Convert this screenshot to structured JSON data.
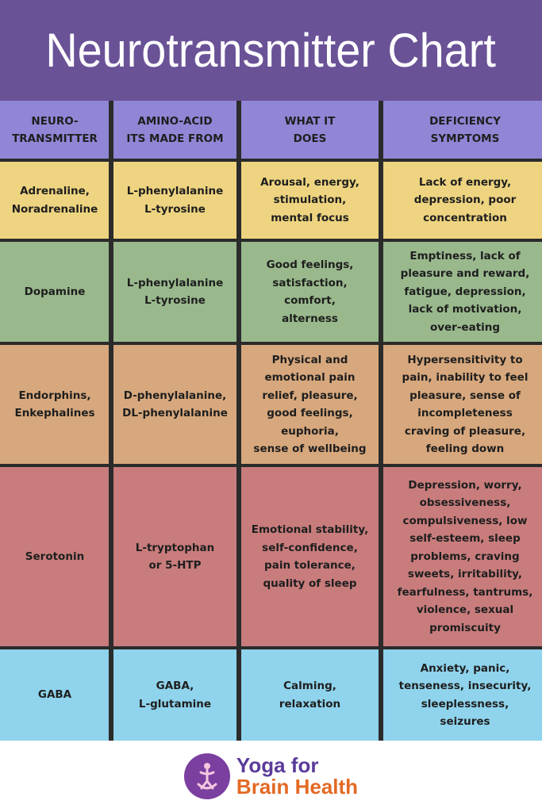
{
  "title": "Neurotransmitter Chart",
  "headers": [
    "NEURO-\nTRANSMITTER",
    "AMINO-ACID\nITS MADE FROM",
    "WHAT IT\nDOES",
    "DEFICIENCY\nSYMPTOMS"
  ],
  "rows": [
    {
      "neurotransmitter": "Adrenaline,\nNoradrenaline",
      "amino_acid": "L-phenylalanine\nL-tyrosine",
      "what_it_does": "Arousal, energy,\nstimulation,\nmental focus",
      "deficiency": "Lack of energy,\ndepression, poor\nconcentration"
    },
    {
      "neurotransmitter": "Dopamine",
      "amino_acid": "L-phenylalanine\nL-tyrosine",
      "what_it_does": "Good feelings,\nsatisfaction,\ncomfort,\nalterness",
      "deficiency": "Emptiness, lack of\npleasure and reward,\nfatigue, depression,\nlack of motivation,\nover-eating"
    },
    {
      "neurotransmitter": "Endorphins,\nEnkephalines",
      "amino_acid": "D-phenylalanine,\nDL-phenylalanine",
      "what_it_does": "Physical and\nemotional pain\nrelief, pleasure,\ngood feelings,\neuphoria,\nsense of wellbeing",
      "deficiency": "Hypersensitivity to\npain, inability to feel\npleasure, sense of\nincompleteness\ncraving of pleasure,\nfeeling down"
    },
    {
      "neurotransmitter": "Serotonin",
      "amino_acid": "L-tryptophan\nor 5-HTP",
      "what_it_does": "Emotional stability,\nself-confidence,\npain tolerance,\nquality of sleep",
      "deficiency": "Depression, worry,\nobsessiveness,\ncompulsiveness, low\nself-esteem, sleep\nproblems, craving\nsweets, irritability,\nfearfulness, tantrums,\nviolence, sexual\npromiscuity"
    },
    {
      "neurotransmitter": "GABA",
      "amino_acid": "GABA,\nL-glutamine",
      "what_it_does": "Calming,\nrelaxation",
      "deficiency": "Anxiety, panic,\ntenseness, insecurity,\nsleeplessness,\nseizures"
    }
  ],
  "colors": {
    "title_bg": "#6a5297",
    "header_bg": "#8f86d6",
    "rows": [
      "#eed480",
      "#99b98d",
      "#d7a87d",
      "#c87c7c",
      "#8fd3ec"
    ]
  },
  "footer": {
    "logo_icon": "yoga-figure-icon",
    "logo_line1": "Yoga for",
    "logo_line2": "Brain Health"
  }
}
